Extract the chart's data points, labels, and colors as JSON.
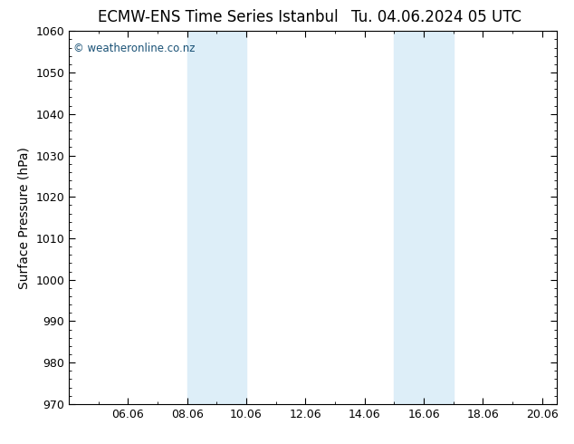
{
  "title": "ECMW-ENS Time Series Istanbul",
  "title2": "Tu. 04.06.2024 05 UTC",
  "ylabel": "Surface Pressure (hPa)",
  "ylim": [
    970,
    1060
  ],
  "xlim": [
    4.0,
    20.5
  ],
  "yticks": [
    970,
    980,
    990,
    1000,
    1010,
    1020,
    1030,
    1040,
    1050,
    1060
  ],
  "xtick_positions": [
    6,
    8,
    10,
    12,
    14,
    16,
    18,
    20
  ],
  "xtick_labels": [
    "06.06",
    "08.06",
    "10.06",
    "12.06",
    "14.06",
    "16.06",
    "18.06",
    "20.06"
  ],
  "shaded_bands": [
    {
      "xmin": 8.0,
      "xmax": 10.0
    },
    {
      "xmin": 15.0,
      "xmax": 17.0
    }
  ],
  "band_color": "#ddeef8",
  "bg_color": "#ffffff",
  "plot_bg_color": "#ffffff",
  "copyright_text": "© weatheronline.co.nz",
  "copyright_color": "#1a5276",
  "title_fontsize": 12,
  "axis_label_fontsize": 10,
  "tick_fontsize": 9,
  "copyright_fontsize": 8.5
}
